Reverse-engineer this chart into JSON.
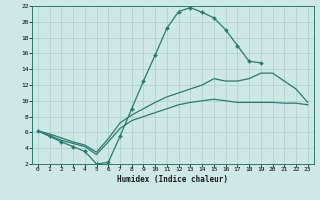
{
  "xlabel": "Humidex (Indice chaleur)",
  "xlim": [
    -0.5,
    23.5
  ],
  "ylim": [
    2,
    22
  ],
  "xticks": [
    0,
    1,
    2,
    3,
    4,
    5,
    6,
    7,
    8,
    9,
    10,
    11,
    12,
    13,
    14,
    15,
    16,
    17,
    18,
    19,
    20,
    21,
    22,
    23
  ],
  "yticks": [
    2,
    4,
    6,
    8,
    10,
    12,
    14,
    16,
    18,
    20,
    22
  ],
  "bg_color": "#cde8e5",
  "line_color": "#2a7a6f",
  "grid_color": "#aacfcb",
  "line1_x": [
    0,
    1,
    2,
    3,
    4,
    5,
    6,
    7,
    8,
    9,
    10,
    11,
    12,
    13,
    14,
    15,
    16,
    17,
    18,
    19
  ],
  "line1_y": [
    6.2,
    5.5,
    4.8,
    4.2,
    3.6,
    2.0,
    2.2,
    5.5,
    9.0,
    12.5,
    15.8,
    19.2,
    21.3,
    21.8,
    21.2,
    20.5,
    19.0,
    17.0,
    15.0,
    14.8
  ],
  "line2_x": [
    0,
    1,
    2,
    3,
    4,
    5,
    6,
    7,
    8,
    9,
    10,
    11,
    12,
    13,
    14,
    15,
    16,
    17,
    18,
    19,
    20,
    21,
    22,
    23
  ],
  "line2_y": [
    6.2,
    5.8,
    5.3,
    4.8,
    4.4,
    3.5,
    5.2,
    7.2,
    8.2,
    9.0,
    9.8,
    10.5,
    11.0,
    11.5,
    12.0,
    12.8,
    12.5,
    12.5,
    12.8,
    13.5,
    13.5,
    12.5,
    11.5,
    9.8
  ],
  "line3_x": [
    0,
    1,
    2,
    3,
    4,
    5,
    6,
    7,
    8,
    9,
    10,
    11,
    12,
    13,
    14,
    15,
    16,
    17,
    18,
    19,
    20,
    21,
    22,
    23
  ],
  "line3_y": [
    6.2,
    5.6,
    5.0,
    4.6,
    4.2,
    3.2,
    4.8,
    6.5,
    7.5,
    8.0,
    8.5,
    9.0,
    9.5,
    9.8,
    10.0,
    10.2,
    10.0,
    9.8,
    9.8,
    9.8,
    9.8,
    9.7,
    9.7,
    9.5
  ]
}
